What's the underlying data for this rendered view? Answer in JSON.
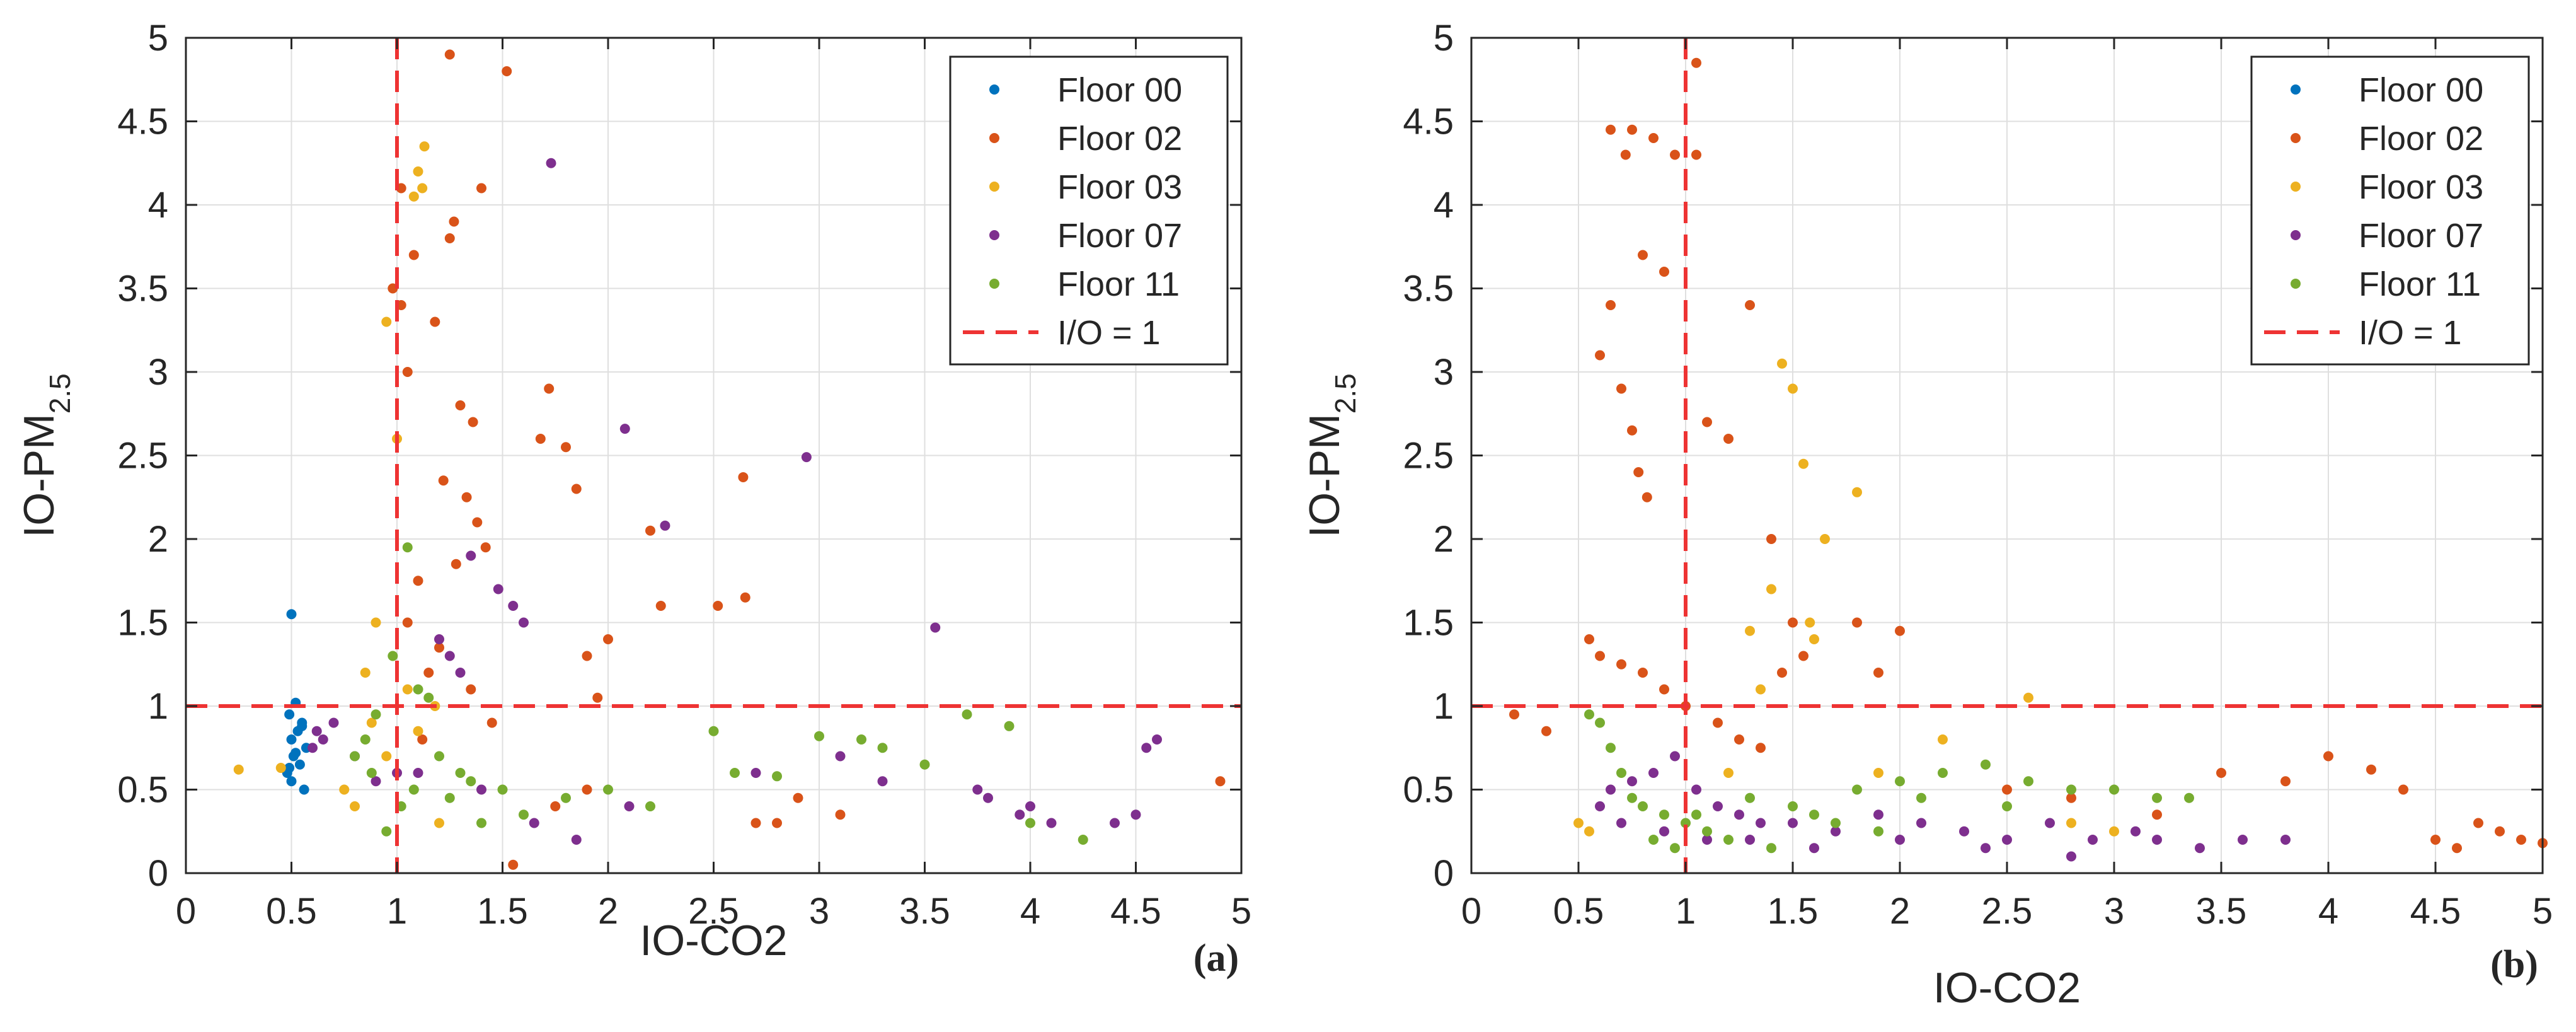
{
  "colors": {
    "floor00": "#0072BD",
    "floor02": "#D95319",
    "floor03": "#EDB120",
    "floor07": "#7E2F8E",
    "floor11": "#77AC30",
    "reference_line": "#EE3333",
    "grid": "#DFDFDF",
    "axes": "#262626"
  },
  "chart_data": [
    {
      "type": "scatter",
      "panel_label": "(a)",
      "xlabel": "IO-CO2",
      "ylabel_main": "IO-PM",
      "ylabel_sub": "2.5",
      "xlim": [
        0,
        5
      ],
      "ylim": [
        0,
        5
      ],
      "x_ticks": [
        "0",
        "0.5",
        "1",
        "1.5",
        "2",
        "2.5",
        "3",
        "3.5",
        "4",
        "4.5",
        "5"
      ],
      "y_ticks": [
        "0",
        "0.5",
        "1",
        "1.5",
        "2",
        "2.5",
        "3",
        "3.5",
        "4",
        "4.5",
        "5"
      ],
      "grid": true,
      "legend": "top-right",
      "reference_lines": [
        {
          "orientation": "vertical",
          "value": 1
        },
        {
          "orientation": "horizontal",
          "value": 1
        }
      ],
      "series": [
        {
          "name": "Floor 00",
          "color_key": "floor00",
          "x": [
            0.5,
            0.52,
            0.49,
            0.55,
            0.53,
            0.5,
            0.57,
            0.51,
            0.54,
            0.48,
            0.5,
            0.56,
            0.52,
            0.55,
            0.49
          ],
          "y": [
            1.55,
            1.02,
            0.95,
            0.9,
            0.85,
            0.8,
            0.75,
            0.7,
            0.65,
            0.6,
            0.55,
            0.5,
            0.72,
            0.88,
            0.63
          ]
        },
        {
          "name": "Floor 02",
          "color_key": "floor02",
          "x": [
            1.25,
            1.52,
            1.02,
            1.4,
            1.27,
            1.25,
            1.08,
            0.98,
            1.02,
            1.18,
            1.05,
            1.3,
            1.36,
            1.68,
            1.72,
            1.8,
            1.85,
            1.22,
            1.33,
            1.38,
            1.42,
            1.28,
            1.1,
            2.2,
            2.25,
            2.64,
            2.65,
            2.52,
            2.0,
            1.9,
            1.95,
            4.9,
            1.55,
            1.75,
            1.9,
            2.8,
            3.1,
            2.7,
            2.9,
            1.15,
            1.2,
            1.35,
            1.45,
            1.05,
            1.12
          ],
          "y": [
            4.9,
            4.8,
            4.1,
            4.1,
            3.9,
            3.8,
            3.7,
            3.5,
            3.4,
            3.3,
            3.0,
            2.8,
            2.7,
            2.6,
            2.9,
            2.55,
            2.3,
            2.35,
            2.25,
            2.1,
            1.95,
            1.85,
            1.75,
            2.05,
            1.6,
            2.37,
            1.65,
            1.6,
            1.4,
            1.3,
            1.05,
            0.55,
            0.05,
            0.4,
            0.5,
            0.3,
            0.35,
            0.3,
            0.45,
            1.2,
            1.35,
            1.1,
            0.9,
            1.5,
            0.8
          ]
        },
        {
          "name": "Floor 03",
          "color_key": "floor03",
          "x": [
            1.13,
            1.1,
            1.12,
            1.08,
            0.95,
            1.0,
            0.9,
            0.85,
            1.05,
            1.18,
            0.25,
            0.45,
            0.8,
            0.75,
            0.95,
            1.1,
            1.2,
            0.88
          ],
          "y": [
            4.35,
            4.2,
            4.1,
            4.05,
            3.3,
            2.6,
            1.5,
            1.2,
            1.1,
            1.0,
            0.62,
            0.63,
            0.4,
            0.5,
            0.7,
            0.85,
            0.3,
            0.9
          ]
        },
        {
          "name": "Floor 07",
          "color_key": "floor07",
          "x": [
            1.73,
            2.94,
            2.08,
            2.27,
            3.55,
            1.35,
            1.48,
            1.55,
            1.6,
            1.2,
            1.25,
            1.3,
            3.75,
            4.4,
            4.5,
            4.55,
            4.6,
            2.1,
            2.7,
            3.1,
            3.3,
            3.8,
            4.0,
            0.65,
            0.6,
            0.62,
            0.7,
            0.8,
            1.1,
            1.4,
            1.65,
            1.85,
            3.95,
            4.1,
            1.0,
            0.9
          ],
          "y": [
            4.25,
            2.49,
            2.66,
            2.08,
            1.47,
            1.9,
            1.7,
            1.6,
            1.5,
            1.4,
            1.3,
            1.2,
            0.5,
            0.3,
            0.35,
            0.75,
            0.8,
            0.4,
            0.6,
            0.7,
            0.55,
            0.45,
            0.4,
            0.8,
            0.75,
            0.85,
            0.9,
            0.7,
            0.6,
            0.5,
            0.3,
            0.2,
            0.35,
            0.3,
            0.6,
            0.55
          ]
        },
        {
          "name": "Floor 11",
          "color_key": "floor11",
          "x": [
            1.05,
            0.98,
            1.1,
            1.15,
            0.9,
            0.85,
            1.2,
            1.3,
            2.5,
            2.6,
            3.0,
            3.2,
            3.5,
            3.7,
            3.9,
            4.0,
            4.25,
            2.0,
            2.2,
            1.8,
            1.6,
            1.4,
            0.95,
            1.02,
            1.08,
            0.88,
            0.8,
            1.25,
            1.35,
            1.5,
            3.3,
            2.8
          ],
          "y": [
            1.95,
            1.3,
            1.1,
            1.05,
            0.95,
            0.8,
            0.7,
            0.6,
            0.85,
            0.6,
            0.82,
            0.8,
            0.65,
            0.95,
            0.88,
            0.3,
            0.2,
            0.5,
            0.4,
            0.45,
            0.35,
            0.3,
            0.25,
            0.4,
            0.5,
            0.6,
            0.7,
            0.45,
            0.55,
            0.5,
            0.75,
            0.58
          ]
        }
      ]
    },
    {
      "type": "scatter",
      "panel_label": "(b)",
      "xlabel": "IO-CO2",
      "ylabel_main": "IO-PM",
      "ylabel_sub": "2.5",
      "xlim": [
        0,
        5
      ],
      "ylim": [
        0,
        5
      ],
      "x_ticks": [
        "0",
        "0.5",
        "1",
        "1.5",
        "2",
        "2.5",
        "3",
        "3.5",
        "4",
        "4.5",
        "5"
      ],
      "y_ticks": [
        "0",
        "0.5",
        "1",
        "1.5",
        "2",
        "2.5",
        "3",
        "3.5",
        "4",
        "4.5",
        "5"
      ],
      "grid": true,
      "legend": "top-right",
      "reference_lines": [
        {
          "orientation": "vertical",
          "value": 1
        },
        {
          "orientation": "horizontal",
          "value": 1
        }
      ],
      "series": [
        {
          "name": "Floor 00",
          "color_key": "floor00",
          "x": [],
          "y": []
        },
        {
          "name": "Floor 02",
          "color_key": "floor02",
          "x": [
            1.05,
            0.65,
            0.75,
            0.85,
            0.95,
            1.05,
            0.72,
            0.8,
            0.9,
            0.6,
            0.65,
            0.7,
            0.75,
            0.78,
            0.82,
            1.1,
            1.2,
            1.3,
            1.4,
            1.5,
            0.55,
            0.6,
            0.7,
            0.8,
            0.9,
            1.0,
            1.15,
            1.25,
            1.35,
            1.45,
            1.55,
            1.8,
            1.9,
            2.0,
            0.2,
            0.35,
            3.5,
            3.8,
            4.0,
            4.2,
            4.35,
            4.5,
            4.6,
            4.7,
            4.8,
            4.9,
            5.0,
            2.5,
            2.8,
            3.2
          ],
          "y": [
            4.85,
            4.45,
            4.45,
            4.4,
            4.3,
            4.3,
            4.3,
            3.7,
            3.6,
            3.1,
            3.4,
            2.9,
            2.65,
            2.4,
            2.25,
            2.7,
            2.6,
            3.4,
            2.0,
            1.5,
            1.4,
            1.3,
            1.25,
            1.2,
            1.1,
            1.0,
            0.9,
            0.8,
            0.75,
            1.2,
            1.3,
            1.5,
            1.2,
            1.45,
            0.95,
            0.85,
            0.6,
            0.55,
            0.7,
            0.62,
            0.5,
            0.2,
            0.15,
            0.3,
            0.25,
            0.2,
            0.18,
            0.5,
            0.45,
            0.35
          ]
        },
        {
          "name": "Floor 03",
          "color_key": "floor03",
          "x": [
            1.45,
            1.5,
            1.55,
            1.65,
            1.8,
            1.58,
            1.3,
            1.4,
            1.6,
            2.6,
            2.2,
            1.9,
            0.5,
            0.55,
            1.2,
            1.35,
            2.8,
            3.0
          ],
          "y": [
            3.05,
            2.9,
            2.45,
            2.0,
            2.28,
            1.5,
            1.45,
            1.7,
            1.4,
            1.05,
            0.8,
            0.6,
            0.3,
            0.25,
            0.6,
            1.1,
            0.3,
            0.25
          ]
        },
        {
          "name": "Floor 07",
          "color_key": "floor07",
          "x": [
            0.65,
            0.75,
            0.85,
            0.95,
            1.05,
            1.15,
            1.25,
            1.35,
            1.5,
            1.7,
            1.9,
            2.1,
            2.3,
            2.5,
            2.7,
            2.9,
            3.1,
            3.4,
            3.6,
            3.8,
            0.7,
            0.9,
            1.1,
            1.3,
            1.6,
            2.0,
            2.4,
            2.8,
            3.2,
            0.6
          ],
          "y": [
            0.5,
            0.55,
            0.6,
            0.7,
            0.5,
            0.4,
            0.35,
            0.3,
            0.3,
            0.25,
            0.35,
            0.3,
            0.25,
            0.2,
            0.3,
            0.2,
            0.25,
            0.15,
            0.2,
            0.2,
            0.3,
            0.25,
            0.2,
            0.2,
            0.15,
            0.2,
            0.15,
            0.1,
            0.2,
            0.4
          ]
        },
        {
          "name": "Floor 11",
          "color_key": "floor11",
          "x": [
            0.55,
            0.6,
            0.7,
            0.8,
            0.9,
            1.0,
            1.1,
            1.2,
            1.4,
            1.6,
            1.8,
            2.0,
            2.2,
            2.4,
            2.6,
            2.8,
            3.0,
            3.2,
            3.35,
            0.65,
            0.75,
            0.85,
            0.95,
            1.05,
            1.3,
            1.5,
            1.7,
            1.9,
            2.1,
            2.5
          ],
          "y": [
            0.95,
            0.9,
            0.6,
            0.4,
            0.35,
            0.3,
            0.25,
            0.2,
            0.15,
            0.35,
            0.5,
            0.55,
            0.6,
            0.65,
            0.55,
            0.5,
            0.5,
            0.45,
            0.45,
            0.75,
            0.45,
            0.2,
            0.15,
            0.35,
            0.45,
            0.4,
            0.3,
            0.25,
            0.45,
            0.4
          ]
        }
      ]
    }
  ]
}
